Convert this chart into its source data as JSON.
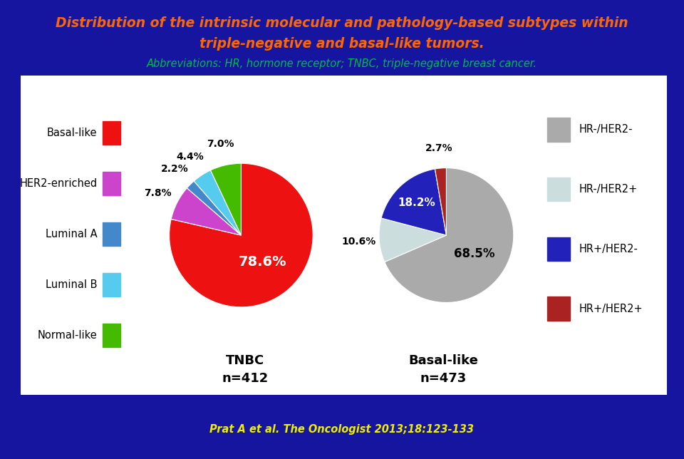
{
  "bg_color": "#1515a0",
  "title_line1": "Distribution of the intrinsic molecular and pathology-based subtypes within",
  "title_line2": "triple-negative and basal-like tumors.",
  "title_color": "#ff6600",
  "subtitle": "Abbreviations: HR, hormone receptor; TNBC, triple-negative breast cancer.",
  "subtitle_color": "#00bb44",
  "citation": "Prat A et al. The Oncologist 2013;18:123-133",
  "citation_color": "#eeee00",
  "white_box_bg": "#ffffff",
  "tnbc_values": [
    78.6,
    7.8,
    2.2,
    4.4,
    7.0
  ],
  "tnbc_colors": [
    "#ee1111",
    "#cc44cc",
    "#4488cc",
    "#55ccee",
    "#44bb00"
  ],
  "tnbc_labels": [
    "78.6%",
    "7.8%",
    "2.2%",
    "4.4%",
    "7.0%"
  ],
  "tnbc_title": "TNBC",
  "tnbc_n": "n=412",
  "basal_values": [
    68.5,
    10.6,
    18.2,
    2.7
  ],
  "basal_colors": [
    "#aaaaaa",
    "#ccdddd",
    "#2222bb",
    "#aa2222"
  ],
  "basal_labels": [
    "68.5%",
    "10.6%",
    "18.2%",
    "2.7%"
  ],
  "basal_title": "Basal-like",
  "basal_n": "n=473",
  "left_legend_labels": [
    "Basal-like",
    "HER2-enriched",
    "Luminal A",
    "Luminal B",
    "Normal-like"
  ],
  "left_legend_colors": [
    "#ee1111",
    "#cc44cc",
    "#4488cc",
    "#55ccee",
    "#44bb00"
  ],
  "right_legend_labels": [
    "HR-/HER2-",
    "HR-/HER2+",
    "HR+/HER2-",
    "HR+/HER2+"
  ],
  "right_legend_colors": [
    "#aaaaaa",
    "#ccdddd",
    "#2222bb",
    "#aa2222"
  ]
}
